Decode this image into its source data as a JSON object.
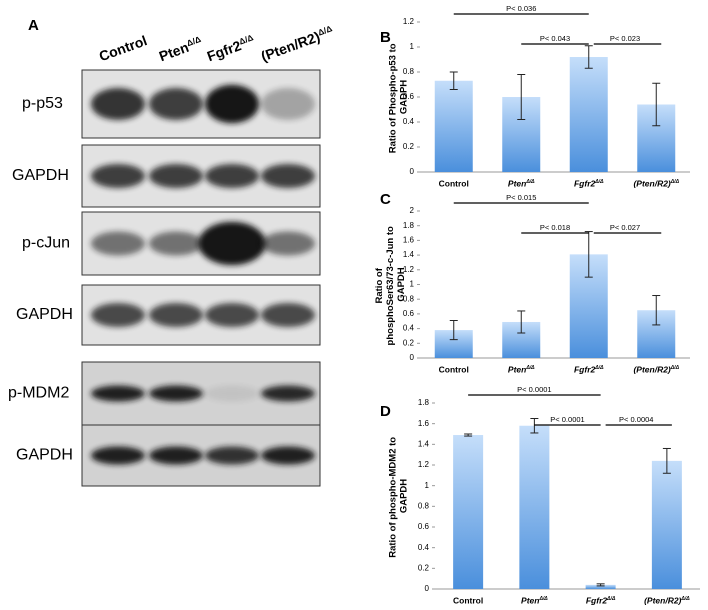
{
  "blot": {
    "label": "A",
    "lanes": [
      "Control",
      "PtenΔ/Δ",
      "Fgfr2Δ/Δ",
      "(Pten/R2)Δ/Δ"
    ],
    "rows": [
      "p-p53",
      "GAPDH",
      "p-cJun",
      "GAPDH",
      "p-MDM2",
      "GAPDH"
    ]
  },
  "chart_data": [
    {
      "type": "bar",
      "panel": "B",
      "ylabel": "Ratio of Phospho-p53 to GADPH",
      "categories": [
        "Control",
        "PtenΔ/Δ",
        "Fgfr2Δ/Δ",
        "(Pten/R2)Δ/Δ"
      ],
      "values": [
        0.73,
        0.6,
        0.92,
        0.54
      ],
      "errors": [
        0.07,
        0.18,
        0.09,
        0.17
      ],
      "color": "#4a8fdc",
      "ylim": [
        0,
        1.2
      ],
      "yticks": [
        0,
        0.2,
        0.4,
        0.6,
        0.8,
        1,
        1.2
      ],
      "comparisons": [
        "P< 0.036",
        "P< 0.043",
        "P< 0.023"
      ]
    },
    {
      "type": "bar",
      "panel": "C",
      "ylabel": "Ratio of phosphoSer63/73-c-Jun to GAPDH",
      "categories": [
        "Control",
        "PtenΔ/Δ",
        "Fgfr2Δ/Δ",
        "(Pten/R2)Δ/Δ"
      ],
      "values": [
        0.38,
        0.49,
        1.41,
        0.65
      ],
      "errors": [
        0.13,
        0.15,
        0.31,
        0.2
      ],
      "color": "#4a8fdc",
      "ylim": [
        0,
        2
      ],
      "yticks": [
        0,
        0.2,
        0.4,
        0.6,
        0.8,
        1,
        1.2,
        1.4,
        1.6,
        1.8,
        2
      ],
      "comparisons": [
        "P< 0.015",
        "P< 0.018",
        "P< 0.027"
      ]
    },
    {
      "type": "bar",
      "panel": "D",
      "ylabel": "Ratio of phospho-MDM2 to GAPDH",
      "categories": [
        "Control",
        "PtenΔ/Δ",
        "Fgfr2Δ/Δ",
        "(Pten/R2)Δ/Δ"
      ],
      "values": [
        1.49,
        1.58,
        0.04,
        1.24
      ],
      "errors": [
        0.01,
        0.07,
        0.01,
        0.12
      ],
      "color": "#4a8fdc",
      "ylim": [
        0,
        1.8
      ],
      "yticks": [
        0,
        0.2,
        0.4,
        0.6,
        0.8,
        1,
        1.2,
        1.4,
        1.6,
        1.8
      ],
      "comparisons": [
        "P< 0.0001",
        "P< 0.0001",
        "P< 0.0004"
      ]
    }
  ]
}
